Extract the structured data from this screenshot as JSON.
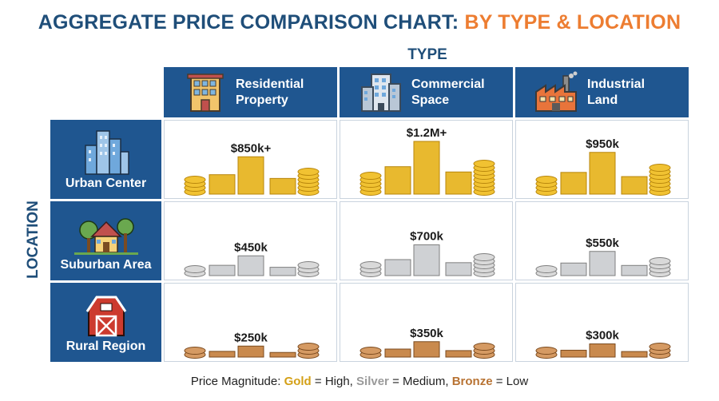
{
  "title": {
    "part1": "AGGREGATE PRICE COMPARISON CHART:",
    "part2": "BY TYPE & LOCATION"
  },
  "axis": {
    "top": "TYPE",
    "left": "LOCATION"
  },
  "colors": {
    "header_bg": "#1f5690",
    "title_primary": "#1f4e79",
    "title_accent": "#ed7d31",
    "gold": "#e8b92f",
    "silver": "#cfd1d4",
    "bronze": "#c98a4e"
  },
  "icons": {
    "types": [
      "residential-building-icon",
      "office-tower-icon",
      "factory-icon"
    ],
    "locations": [
      "city-skyline-icon",
      "house-with-trees-icon",
      "red-barn-icon"
    ],
    "cell": [
      "coin-stack-icon",
      "price-bar"
    ]
  },
  "legend": {
    "prefix": "Price Magnitude:",
    "gold": "Gold",
    "gold_desc": "= High,",
    "silver": "Silver",
    "silver_desc": "= Medium,",
    "bronze": "Bronze",
    "bronze_desc": "= Low"
  },
  "chart_data": {
    "type": "table",
    "columns": [
      "Residential Property",
      "Commercial Space",
      "Industrial Land"
    ],
    "column_labels": [
      "Residential\nProperty",
      "Commercial\nSpace",
      "Industrial\nLand"
    ],
    "rows": [
      "Urban Center",
      "Suburban Area",
      "Rural Region"
    ],
    "cells": [
      [
        {
          "label": "$850k+",
          "value": 850000,
          "tier": "gold"
        },
        {
          "label": "$1.2M+",
          "value": 1200000,
          "tier": "gold"
        },
        {
          "label": "$950k",
          "value": 950000,
          "tier": "gold"
        }
      ],
      [
        {
          "label": "$450k",
          "value": 450000,
          "tier": "silver"
        },
        {
          "label": "$700k",
          "value": 700000,
          "tier": "silver"
        },
        {
          "label": "$550k",
          "value": 550000,
          "tier": "silver"
        }
      ],
      [
        {
          "label": "$250k",
          "value": 250000,
          "tier": "bronze"
        },
        {
          "label": "$350k",
          "value": 350000,
          "tier": "bronze"
        },
        {
          "label": "$300k",
          "value": 300000,
          "tier": "bronze"
        }
      ]
    ]
  }
}
